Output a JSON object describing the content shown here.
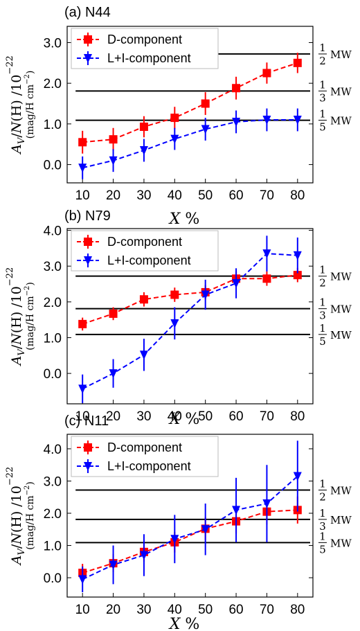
{
  "chart_data": [
    {
      "type": "line",
      "title": "(a) N44",
      "xlabel_var": "X",
      "xlabel_unit": "%",
      "ylabel": "A_V/N(H) /10^-22",
      "ylabel_unit": "(mag/H cm^-2)",
      "x": [
        10,
        20,
        30,
        40,
        50,
        60,
        70,
        80
      ],
      "xticks": [
        "10",
        "20",
        "30",
        "40",
        "50",
        "60",
        "70",
        "80"
      ],
      "ylim": [
        -0.45,
        3.4
      ],
      "yticks": [
        0.0,
        1.0,
        2.0,
        3.0
      ],
      "ytick_labels": [
        "0.0",
        "1.0",
        "2.0",
        "3.0"
      ],
      "legend": "top-left",
      "series": [
        {
          "name": "D-component",
          "color": "#ff0000",
          "marker": "square",
          "values": [
            0.55,
            0.62,
            0.93,
            1.15,
            1.5,
            1.88,
            2.25,
            2.5
          ],
          "errors": [
            0.28,
            0.28,
            0.26,
            0.27,
            0.28,
            0.28,
            0.26,
            0.25
          ]
        },
        {
          "name": "L+I-component",
          "color": "#0000ff",
          "marker": "triangle-down",
          "values": [
            -0.08,
            0.1,
            0.35,
            0.63,
            0.87,
            1.05,
            1.1,
            1.1
          ],
          "errors": [
            0.28,
            0.28,
            0.28,
            0.27,
            0.28,
            0.28,
            0.28,
            0.28
          ]
        }
      ],
      "reference_lines": [
        {
          "value": 2.72,
          "num": "1",
          "den": "2",
          "suffix": "MW"
        },
        {
          "value": 1.81,
          "num": "1",
          "den": "3",
          "suffix": "MW"
        },
        {
          "value": 1.09,
          "num": "1",
          "den": "5",
          "suffix": "MW"
        }
      ]
    },
    {
      "type": "line",
      "title": "(b) N79",
      "xlabel_var": "X",
      "xlabel_unit": "%",
      "ylabel": "A_V/N(H) /10^-22",
      "ylabel_unit": "(mag/H cm^-2)",
      "x": [
        10,
        20,
        30,
        40,
        50,
        60,
        70,
        80
      ],
      "xticks": [
        "10",
        "20",
        "30",
        "40",
        "50",
        "60",
        "70",
        "80"
      ],
      "ylim": [
        -0.85,
        4.05
      ],
      "yticks": [
        0.0,
        1.0,
        2.0,
        3.0,
        4.0
      ],
      "ytick_labels": [
        "0.0",
        "1.0",
        "2.0",
        "3.0",
        "4.0"
      ],
      "legend": "top-left",
      "series": [
        {
          "name": "D-component",
          "color": "#ff0000",
          "marker": "square",
          "values": [
            1.38,
            1.67,
            2.07,
            2.2,
            2.27,
            2.65,
            2.65,
            2.75
          ],
          "errors": [
            0.18,
            0.18,
            0.2,
            0.2,
            0.2,
            0.2,
            0.2,
            0.2
          ]
        },
        {
          "name": "L+I-component",
          "color": "#0000ff",
          "marker": "triangle-down",
          "values": [
            -0.43,
            0.0,
            0.52,
            1.4,
            2.2,
            2.52,
            3.35,
            3.3
          ],
          "errors": [
            0.4,
            0.4,
            0.45,
            0.45,
            0.42,
            0.42,
            0.5,
            0.5
          ]
        }
      ],
      "reference_lines": [
        {
          "value": 2.72,
          "num": "1",
          "den": "2",
          "suffix": "MW"
        },
        {
          "value": 1.81,
          "num": "1",
          "den": "3",
          "suffix": "MW"
        },
        {
          "value": 1.09,
          "num": "1",
          "den": "5",
          "suffix": "MW"
        }
      ]
    },
    {
      "type": "line",
      "title": "(c) N11",
      "xlabel_var": "X",
      "xlabel_unit": "%",
      "ylabel": "A_V/N(H) /10^-22",
      "ylabel_unit": "(mag/H cm^-2)",
      "x": [
        10,
        20,
        30,
        40,
        50,
        60,
        70,
        80
      ],
      "xticks": [
        "10",
        "20",
        "30",
        "40",
        "50",
        "60",
        "70",
        "80"
      ],
      "ylim": [
        -0.6,
        4.45
      ],
      "yticks": [
        0.0,
        1.0,
        2.0,
        3.0,
        4.0
      ],
      "ytick_labels": [
        "0.0",
        "1.0",
        "2.0",
        "3.0",
        "4.0"
      ],
      "legend": "top-left",
      "series": [
        {
          "name": "D-component",
          "color": "#ff0000",
          "marker": "square",
          "values": [
            0.15,
            0.45,
            0.8,
            1.1,
            1.52,
            1.75,
            2.05,
            2.1
          ],
          "errors": [
            0.28,
            0.28,
            0.3,
            0.32,
            0.35,
            0.38,
            0.4,
            0.42
          ]
        },
        {
          "name": "L+I-component",
          "color": "#0000ff",
          "marker": "triangle-down",
          "values": [
            -0.05,
            0.4,
            0.7,
            1.2,
            1.5,
            2.1,
            2.3,
            3.15
          ],
          "errors": [
            0.4,
            0.6,
            0.65,
            0.75,
            0.8,
            1.0,
            1.2,
            1.1
          ]
        }
      ],
      "reference_lines": [
        {
          "value": 2.72,
          "num": "1",
          "den": "2",
          "suffix": "MW"
        },
        {
          "value": 1.81,
          "num": "1",
          "den": "3",
          "suffix": "MW"
        },
        {
          "value": 1.09,
          "num": "1",
          "den": "5",
          "suffix": "MW"
        }
      ]
    }
  ]
}
